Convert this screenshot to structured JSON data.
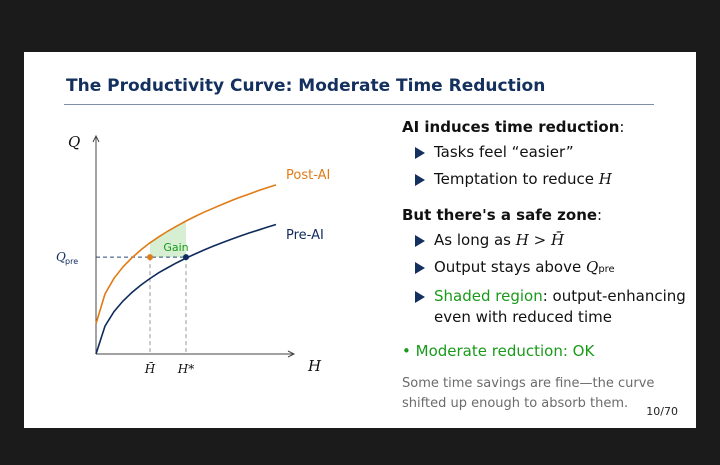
{
  "title": "The Productivity Curve: Moderate Time Reduction",
  "bullets": {
    "ai_head": "AI induces time reduction",
    "ai_head_colon": ":",
    "ai_items": [
      "Tasks feel “easier”",
      "Temptation to reduce "
    ],
    "ai_item2_var": "H",
    "safe_head": "But there's a safe zone",
    "safe_head_colon": ":",
    "safe_item1_prefix": "As long as ",
    "safe_item1_math": "H > H̄",
    "safe_item2_prefix": "Output stays above ",
    "safe_item2_var": "Q",
    "safe_item2_sub": "pre",
    "safe_item3_green": "Shaded region",
    "safe_item3_rest": ": output-enhancing even with reduced time",
    "conclusion_bullet": "•",
    "conclusion": "Moderate reduction: OK",
    "note": "Some time savings are fine—the curve shifted up enough to absorb them."
  },
  "page_number": "10/70",
  "colors": {
    "title": "#14305e",
    "pre_ai": "#0f2b5c",
    "post_ai": "#e07b16",
    "gain": "#1a9a1a",
    "shade": "#d6efd2"
  },
  "chart_data": {
    "type": "line",
    "title": "",
    "xlabel": "H",
    "ylabel": "Q",
    "xlim": [
      0,
      10
    ],
    "ylim": [
      0,
      10
    ],
    "series": [
      {
        "name": "Post-AI",
        "x": [
          0,
          0.5,
          1,
          1.5,
          2,
          2.5,
          3,
          3.5,
          4,
          4.5,
          5,
          5.5,
          6,
          6.5,
          7,
          7.5,
          8,
          8.5,
          9,
          9.5,
          10
        ],
        "y": [
          1.49,
          2.94,
          3.71,
          4.27,
          4.72,
          5.11,
          5.45,
          5.75,
          6.03,
          6.28,
          6.52,
          6.74,
          6.95,
          7.14,
          7.33,
          7.51,
          7.68,
          7.84,
          8.0,
          8.15,
          8.29
        ]
      },
      {
        "name": "Pre-AI",
        "x": [
          0,
          0.5,
          1,
          1.5,
          2,
          2.5,
          3,
          3.5,
          4,
          4.5,
          5,
          5.5,
          6,
          6.5,
          7,
          7.5,
          8,
          8.5,
          9,
          9.5,
          10
        ],
        "y": [
          0,
          1.37,
          2.08,
          2.6,
          3.02,
          3.38,
          3.7,
          3.99,
          4.24,
          4.48,
          4.7,
          4.9,
          5.1,
          5.28,
          5.45,
          5.62,
          5.78,
          5.93,
          6.07,
          6.21,
          6.35
        ]
      }
    ],
    "q_pre": 4.75,
    "h_bar": 3.0,
    "h_star": 5.0,
    "h_bar_label": "H̄",
    "h_star_label": "H*",
    "q_pre_label": "Q",
    "q_pre_label_sub": "pre",
    "gain_label": "Gain",
    "legend": [
      {
        "name": "Post-AI",
        "position": "right of curve"
      },
      {
        "name": "Pre-AI",
        "position": "right of curve"
      }
    ]
  }
}
